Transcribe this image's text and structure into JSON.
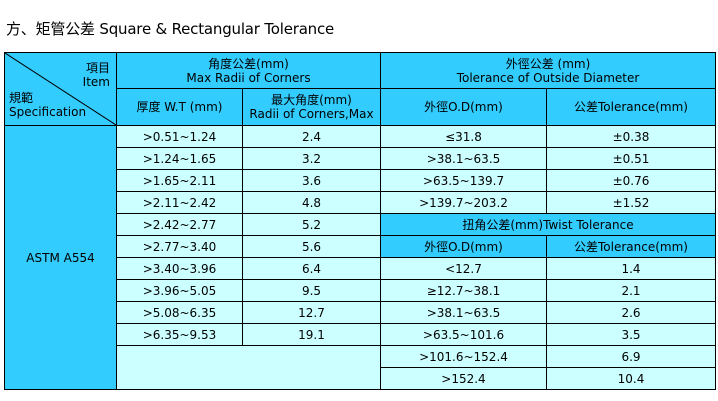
{
  "title": "方、矩管公差 Square & Rectangular Tolerance",
  "colors": {
    "header": "#33ccff",
    "cell": "#ccffff",
    "border": "#000000"
  },
  "corner": {
    "item_zh": "項目",
    "item_en": "Item",
    "spec_zh": "規範",
    "spec_en": "Specification"
  },
  "radii_group": {
    "zh": "角度公差(mm)",
    "en": "Max Radii of Corners"
  },
  "od_group": {
    "zh": "外徑公差  (mm)",
    "en": "Tolerance of Outside Diameter"
  },
  "headers": {
    "wt": "厚度 W.T (mm)",
    "radii_zh": "最大角度(mm)",
    "radii_en": "Radii of Corners,Max",
    "od": "外徑O.D(mm)",
    "tol": "公差Tolerance(mm)"
  },
  "spec_name": "ASTM A554",
  "radii_rows": [
    {
      "wt": ">0.51~1.24",
      "radius": "2.4"
    },
    {
      "wt": ">1.24~1.65",
      "radius": "3.2"
    },
    {
      "wt": ">1.65~2.11",
      "radius": "3.6"
    },
    {
      "wt": ">2.11~2.42",
      "radius": "4.8"
    },
    {
      "wt": ">2.42~2.77",
      "radius": "5.2"
    },
    {
      "wt": ">2.77~3.40",
      "radius": "5.6"
    },
    {
      "wt": ">3.40~3.96",
      "radius": "6.4"
    },
    {
      "wt": ">3.96~5.05",
      "radius": "9.5"
    },
    {
      "wt": ">5.08~6.35",
      "radius": "12.7"
    },
    {
      "wt": ">6.35~9.53",
      "radius": "19.1"
    }
  ],
  "od_rows": [
    {
      "od": "≤31.8",
      "tol": "±0.38"
    },
    {
      "od": ">38.1~63.5",
      "tol": "±0.51"
    },
    {
      "od": ">63.5~139.7",
      "tol": "±0.76"
    },
    {
      "od": ">139.7~203.2",
      "tol": "±1.52"
    }
  ],
  "twist": {
    "title": "扭角公差(mm)Twist Tolerance",
    "od_header": "外徑O.D(mm)",
    "tol_header": "公差Tolerance(mm)",
    "rows": [
      {
        "od": "<12.7",
        "tol": "1.4"
      },
      {
        "od": "≥12.7~38.1",
        "tol": "2.1"
      },
      {
        "od": ">38.1~63.5",
        "tol": "2.6"
      },
      {
        "od": ">63.5~101.6",
        "tol": "3.5"
      },
      {
        "od": ">101.6~152.4",
        "tol": "6.9"
      },
      {
        "od": ">152.4",
        "tol": "10.4"
      }
    ]
  }
}
